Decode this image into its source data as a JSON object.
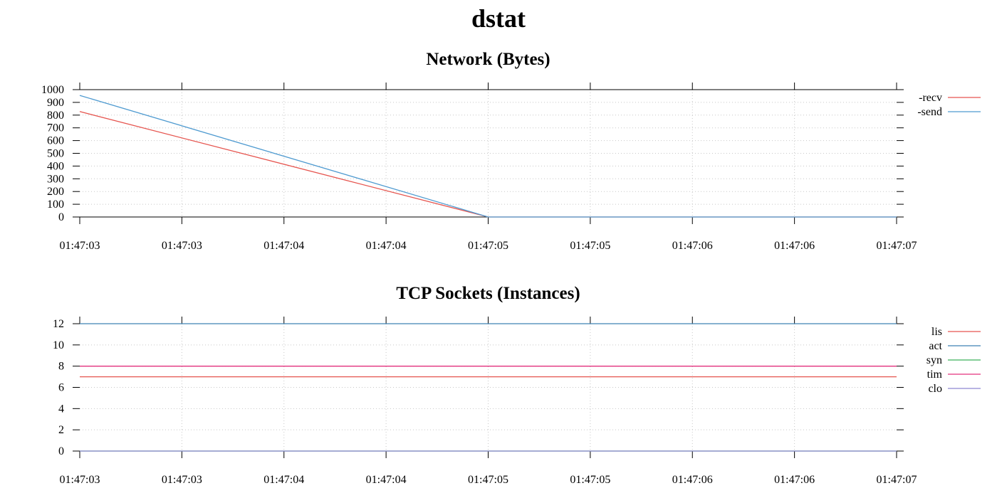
{
  "title": "dstat",
  "colors": {
    "recv": "#e6554f",
    "send": "#4e9ad0",
    "lis": "#e6554f",
    "act": "#3f82b4",
    "syn": "#3cb05a",
    "tim": "#e3307d",
    "clo": "#8f86d2",
    "grid": "#c8c8c8",
    "axis": "#000000"
  },
  "chart_data": [
    {
      "type": "line",
      "title": "Network (Bytes)",
      "xlabel": "",
      "ylabel": "",
      "x": [
        "01:47:03",
        "01:47:05",
        "01:47:07"
      ],
      "x_ticks": [
        "01:47:03",
        "01:47:03",
        "01:47:04",
        "01:47:04",
        "01:47:05",
        "01:47:05",
        "01:47:06",
        "01:47:06",
        "01:47:07"
      ],
      "y_ticks": [
        0,
        100,
        200,
        300,
        400,
        500,
        600,
        700,
        800,
        900,
        1000
      ],
      "ylim": [
        0,
        1000
      ],
      "grid": true,
      "legend_position": "right",
      "series": [
        {
          "name": "recv",
          "legend_label": "-recv",
          "values": [
            828,
            0,
            0
          ]
        },
        {
          "name": "send",
          "legend_label": "-send",
          "values": [
            955,
            0,
            0
          ]
        }
      ]
    },
    {
      "type": "line",
      "title": "TCP Sockets (Instances)",
      "xlabel": "",
      "ylabel": "",
      "x": [
        "01:47:03",
        "01:47:05",
        "01:47:07"
      ],
      "x_ticks": [
        "01:47:03",
        "01:47:03",
        "01:47:04",
        "01:47:04",
        "01:47:05",
        "01:47:05",
        "01:47:06",
        "01:47:06",
        "01:47:07"
      ],
      "y_ticks": [
        0,
        2,
        4,
        6,
        8,
        10,
        12
      ],
      "ylim": [
        0,
        12
      ],
      "grid": true,
      "legend_position": "right",
      "series": [
        {
          "name": "lis",
          "legend_label": "lis",
          "values": [
            7,
            7,
            7
          ]
        },
        {
          "name": "act",
          "legend_label": "act",
          "values": [
            12,
            12,
            12
          ]
        },
        {
          "name": "syn",
          "legend_label": "syn",
          "values": [
            0,
            0,
            0
          ]
        },
        {
          "name": "tim",
          "legend_label": "tim",
          "values": [
            8,
            8,
            8
          ]
        },
        {
          "name": "clo",
          "legend_label": "clo",
          "values": [
            0,
            0,
            0
          ]
        }
      ]
    }
  ]
}
